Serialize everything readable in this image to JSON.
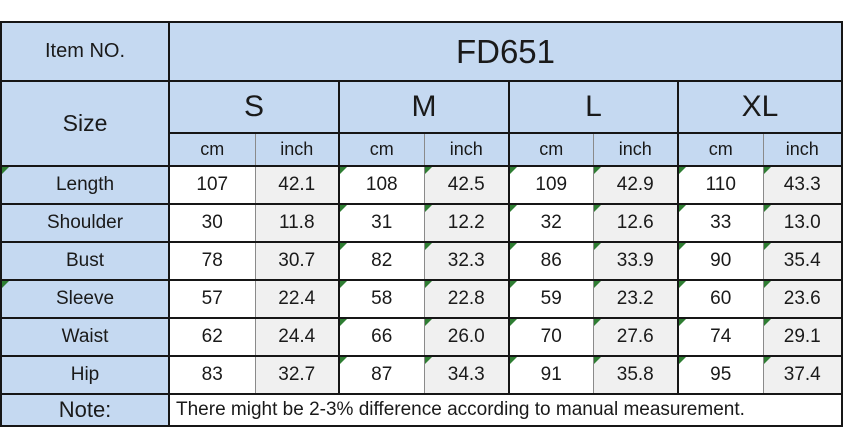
{
  "colors": {
    "header_fill": "#c5d9f1",
    "cm_fill": "#ffffff",
    "inch_fill": "#f0f0f0",
    "border": "#161616",
    "inner_border": "#8a8a8a",
    "text": "#1a1a1a",
    "marker_green": "#2e7d32"
  },
  "chart_data": {
    "type": "table",
    "item_no_label": "Item NO.",
    "item_no_value": "FD651",
    "size_label": "Size",
    "sizes": [
      "S",
      "M",
      "L",
      "XL"
    ],
    "unit_headers": [
      "cm",
      "inch"
    ],
    "rows": [
      {
        "label": "Length",
        "label_marker": true,
        "values": [
          "107",
          "42.1",
          "108",
          "42.5",
          "109",
          "42.9",
          "110",
          "43.3"
        ],
        "cell_markers": [
          false,
          false,
          true,
          true,
          true,
          true,
          true,
          true
        ]
      },
      {
        "label": "Shoulder",
        "label_marker": false,
        "values": [
          "30",
          "11.8",
          "31",
          "12.2",
          "32",
          "12.6",
          "33",
          "13.0"
        ],
        "cell_markers": [
          false,
          false,
          true,
          true,
          true,
          true,
          true,
          true
        ]
      },
      {
        "label": "Bust",
        "label_marker": false,
        "values": [
          "78",
          "30.7",
          "82",
          "32.3",
          "86",
          "33.9",
          "90",
          "35.4"
        ],
        "cell_markers": [
          false,
          false,
          true,
          true,
          true,
          true,
          true,
          true
        ]
      },
      {
        "label": "Sleeve",
        "label_marker": true,
        "values": [
          "57",
          "22.4",
          "58",
          "22.8",
          "59",
          "23.2",
          "60",
          "23.6"
        ],
        "cell_markers": [
          false,
          false,
          true,
          true,
          true,
          true,
          true,
          true
        ]
      },
      {
        "label": "Waist",
        "label_marker": false,
        "values": [
          "62",
          "24.4",
          "66",
          "26.0",
          "70",
          "27.6",
          "74",
          "29.1"
        ],
        "cell_markers": [
          false,
          false,
          true,
          true,
          true,
          true,
          true,
          true
        ]
      },
      {
        "label": "Hip",
        "label_marker": false,
        "values": [
          "83",
          "32.7",
          "87",
          "34.3",
          "91",
          "35.8",
          "95",
          "37.4"
        ],
        "cell_markers": [
          false,
          false,
          true,
          true,
          true,
          true,
          true,
          true
        ]
      }
    ],
    "note_label": "Note:",
    "note_text": "There might be 2-3% difference according to manual measurement."
  }
}
